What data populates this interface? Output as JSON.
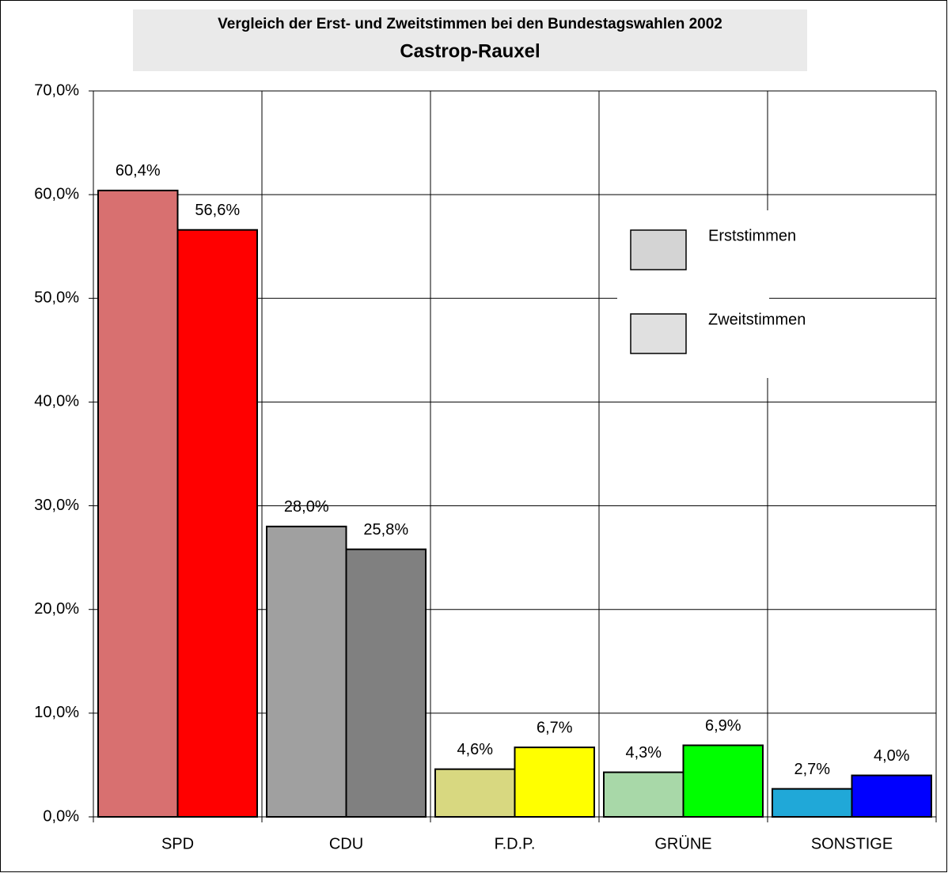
{
  "chart_data": {
    "type": "bar",
    "title": "Vergleich der Erst- und Zweitstimmen bei den Bundestagswahlen 2002",
    "subtitle": "Castrop-Rauxel",
    "categories": [
      "SPD",
      "CDU",
      "F.D.P.",
      "GRÜNE",
      "SONSTIGE"
    ],
    "series": [
      {
        "name": "Erststimmen",
        "color": "#d4d4d4",
        "colors": [
          "#d87070",
          "#a0a0a0",
          "#d8d880",
          "#a8d8a8",
          "#20a8d8"
        ],
        "values": [
          60.4,
          28.0,
          4.6,
          4.3,
          2.7
        ],
        "value_labels": [
          "60,4%",
          "28,0%",
          "4,6%",
          "4,3%",
          "2,7%"
        ]
      },
      {
        "name": "Zweitstimmen",
        "color": "#e0e0e0",
        "colors": [
          "#ff0000",
          "#808080",
          "#ffff00",
          "#00ff00",
          "#0000ff"
        ],
        "values": [
          56.6,
          25.8,
          6.7,
          6.9,
          4.0
        ],
        "value_labels": [
          "56,6%",
          "25,8%",
          "6,7%",
          "6,9%",
          "4,0%"
        ]
      }
    ],
    "ylim": [
      0,
      70
    ],
    "yticks": [
      {
        "value": 0,
        "label": "0,0%"
      },
      {
        "value": 10,
        "label": "10,0%"
      },
      {
        "value": 20,
        "label": "20,0%"
      },
      {
        "value": 30,
        "label": "30,0%"
      },
      {
        "value": 40,
        "label": "40,0%"
      },
      {
        "value": 50,
        "label": "50,0%"
      },
      {
        "value": 60,
        "label": "60,0%"
      },
      {
        "value": 70,
        "label": "70,0%"
      }
    ],
    "grid": true
  }
}
